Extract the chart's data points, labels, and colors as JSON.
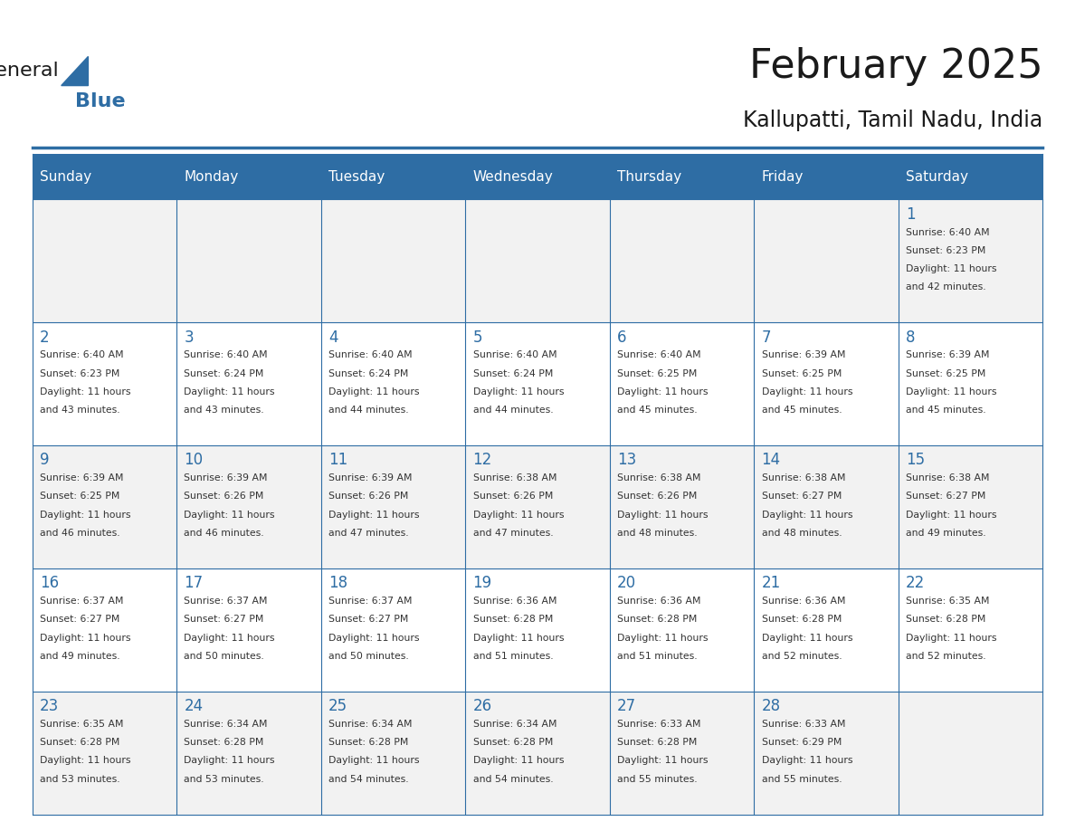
{
  "title": "February 2025",
  "subtitle": "Kallupatti, Tamil Nadu, India",
  "days_of_week": [
    "Sunday",
    "Monday",
    "Tuesday",
    "Wednesday",
    "Thursday",
    "Friday",
    "Saturday"
  ],
  "header_bg": "#2E6DA4",
  "header_text": "#FFFFFF",
  "cell_bg_even": "#F2F2F2",
  "cell_bg_odd": "#FFFFFF",
  "border_color": "#2E6DA4",
  "day_num_color": "#2E6DA4",
  "info_color": "#333333",
  "title_color": "#1a1a1a",
  "subtitle_color": "#1a1a1a",
  "logo_general_color": "#1a1a1a",
  "logo_blue_color": "#2E6DA4",
  "weeks": [
    [
      null,
      null,
      null,
      null,
      null,
      null,
      1
    ],
    [
      2,
      3,
      4,
      5,
      6,
      7,
      8
    ],
    [
      9,
      10,
      11,
      12,
      13,
      14,
      15
    ],
    [
      16,
      17,
      18,
      19,
      20,
      21,
      22
    ],
    [
      23,
      24,
      25,
      26,
      27,
      28,
      null
    ]
  ],
  "sun_data": {
    "1": {
      "rise": "6:40 AM",
      "set": "6:23 PM",
      "day_hours": 11,
      "day_mins": 42
    },
    "2": {
      "rise": "6:40 AM",
      "set": "6:23 PM",
      "day_hours": 11,
      "day_mins": 43
    },
    "3": {
      "rise": "6:40 AM",
      "set": "6:24 PM",
      "day_hours": 11,
      "day_mins": 43
    },
    "4": {
      "rise": "6:40 AM",
      "set": "6:24 PM",
      "day_hours": 11,
      "day_mins": 44
    },
    "5": {
      "rise": "6:40 AM",
      "set": "6:24 PM",
      "day_hours": 11,
      "day_mins": 44
    },
    "6": {
      "rise": "6:40 AM",
      "set": "6:25 PM",
      "day_hours": 11,
      "day_mins": 45
    },
    "7": {
      "rise": "6:39 AM",
      "set": "6:25 PM",
      "day_hours": 11,
      "day_mins": 45
    },
    "8": {
      "rise": "6:39 AM",
      "set": "6:25 PM",
      "day_hours": 11,
      "day_mins": 45
    },
    "9": {
      "rise": "6:39 AM",
      "set": "6:25 PM",
      "day_hours": 11,
      "day_mins": 46
    },
    "10": {
      "rise": "6:39 AM",
      "set": "6:26 PM",
      "day_hours": 11,
      "day_mins": 46
    },
    "11": {
      "rise": "6:39 AM",
      "set": "6:26 PM",
      "day_hours": 11,
      "day_mins": 47
    },
    "12": {
      "rise": "6:38 AM",
      "set": "6:26 PM",
      "day_hours": 11,
      "day_mins": 47
    },
    "13": {
      "rise": "6:38 AM",
      "set": "6:26 PM",
      "day_hours": 11,
      "day_mins": 48
    },
    "14": {
      "rise": "6:38 AM",
      "set": "6:27 PM",
      "day_hours": 11,
      "day_mins": 48
    },
    "15": {
      "rise": "6:38 AM",
      "set": "6:27 PM",
      "day_hours": 11,
      "day_mins": 49
    },
    "16": {
      "rise": "6:37 AM",
      "set": "6:27 PM",
      "day_hours": 11,
      "day_mins": 49
    },
    "17": {
      "rise": "6:37 AM",
      "set": "6:27 PM",
      "day_hours": 11,
      "day_mins": 50
    },
    "18": {
      "rise": "6:37 AM",
      "set": "6:27 PM",
      "day_hours": 11,
      "day_mins": 50
    },
    "19": {
      "rise": "6:36 AM",
      "set": "6:28 PM",
      "day_hours": 11,
      "day_mins": 51
    },
    "20": {
      "rise": "6:36 AM",
      "set": "6:28 PM",
      "day_hours": 11,
      "day_mins": 51
    },
    "21": {
      "rise": "6:36 AM",
      "set": "6:28 PM",
      "day_hours": 11,
      "day_mins": 52
    },
    "22": {
      "rise": "6:35 AM",
      "set": "6:28 PM",
      "day_hours": 11,
      "day_mins": 52
    },
    "23": {
      "rise": "6:35 AM",
      "set": "6:28 PM",
      "day_hours": 11,
      "day_mins": 53
    },
    "24": {
      "rise": "6:34 AM",
      "set": "6:28 PM",
      "day_hours": 11,
      "day_mins": 53
    },
    "25": {
      "rise": "6:34 AM",
      "set": "6:28 PM",
      "day_hours": 11,
      "day_mins": 54
    },
    "26": {
      "rise": "6:34 AM",
      "set": "6:28 PM",
      "day_hours": 11,
      "day_mins": 54
    },
    "27": {
      "rise": "6:33 AM",
      "set": "6:28 PM",
      "day_hours": 11,
      "day_mins": 55
    },
    "28": {
      "rise": "6:33 AM",
      "set": "6:29 PM",
      "day_hours": 11,
      "day_mins": 55
    }
  }
}
